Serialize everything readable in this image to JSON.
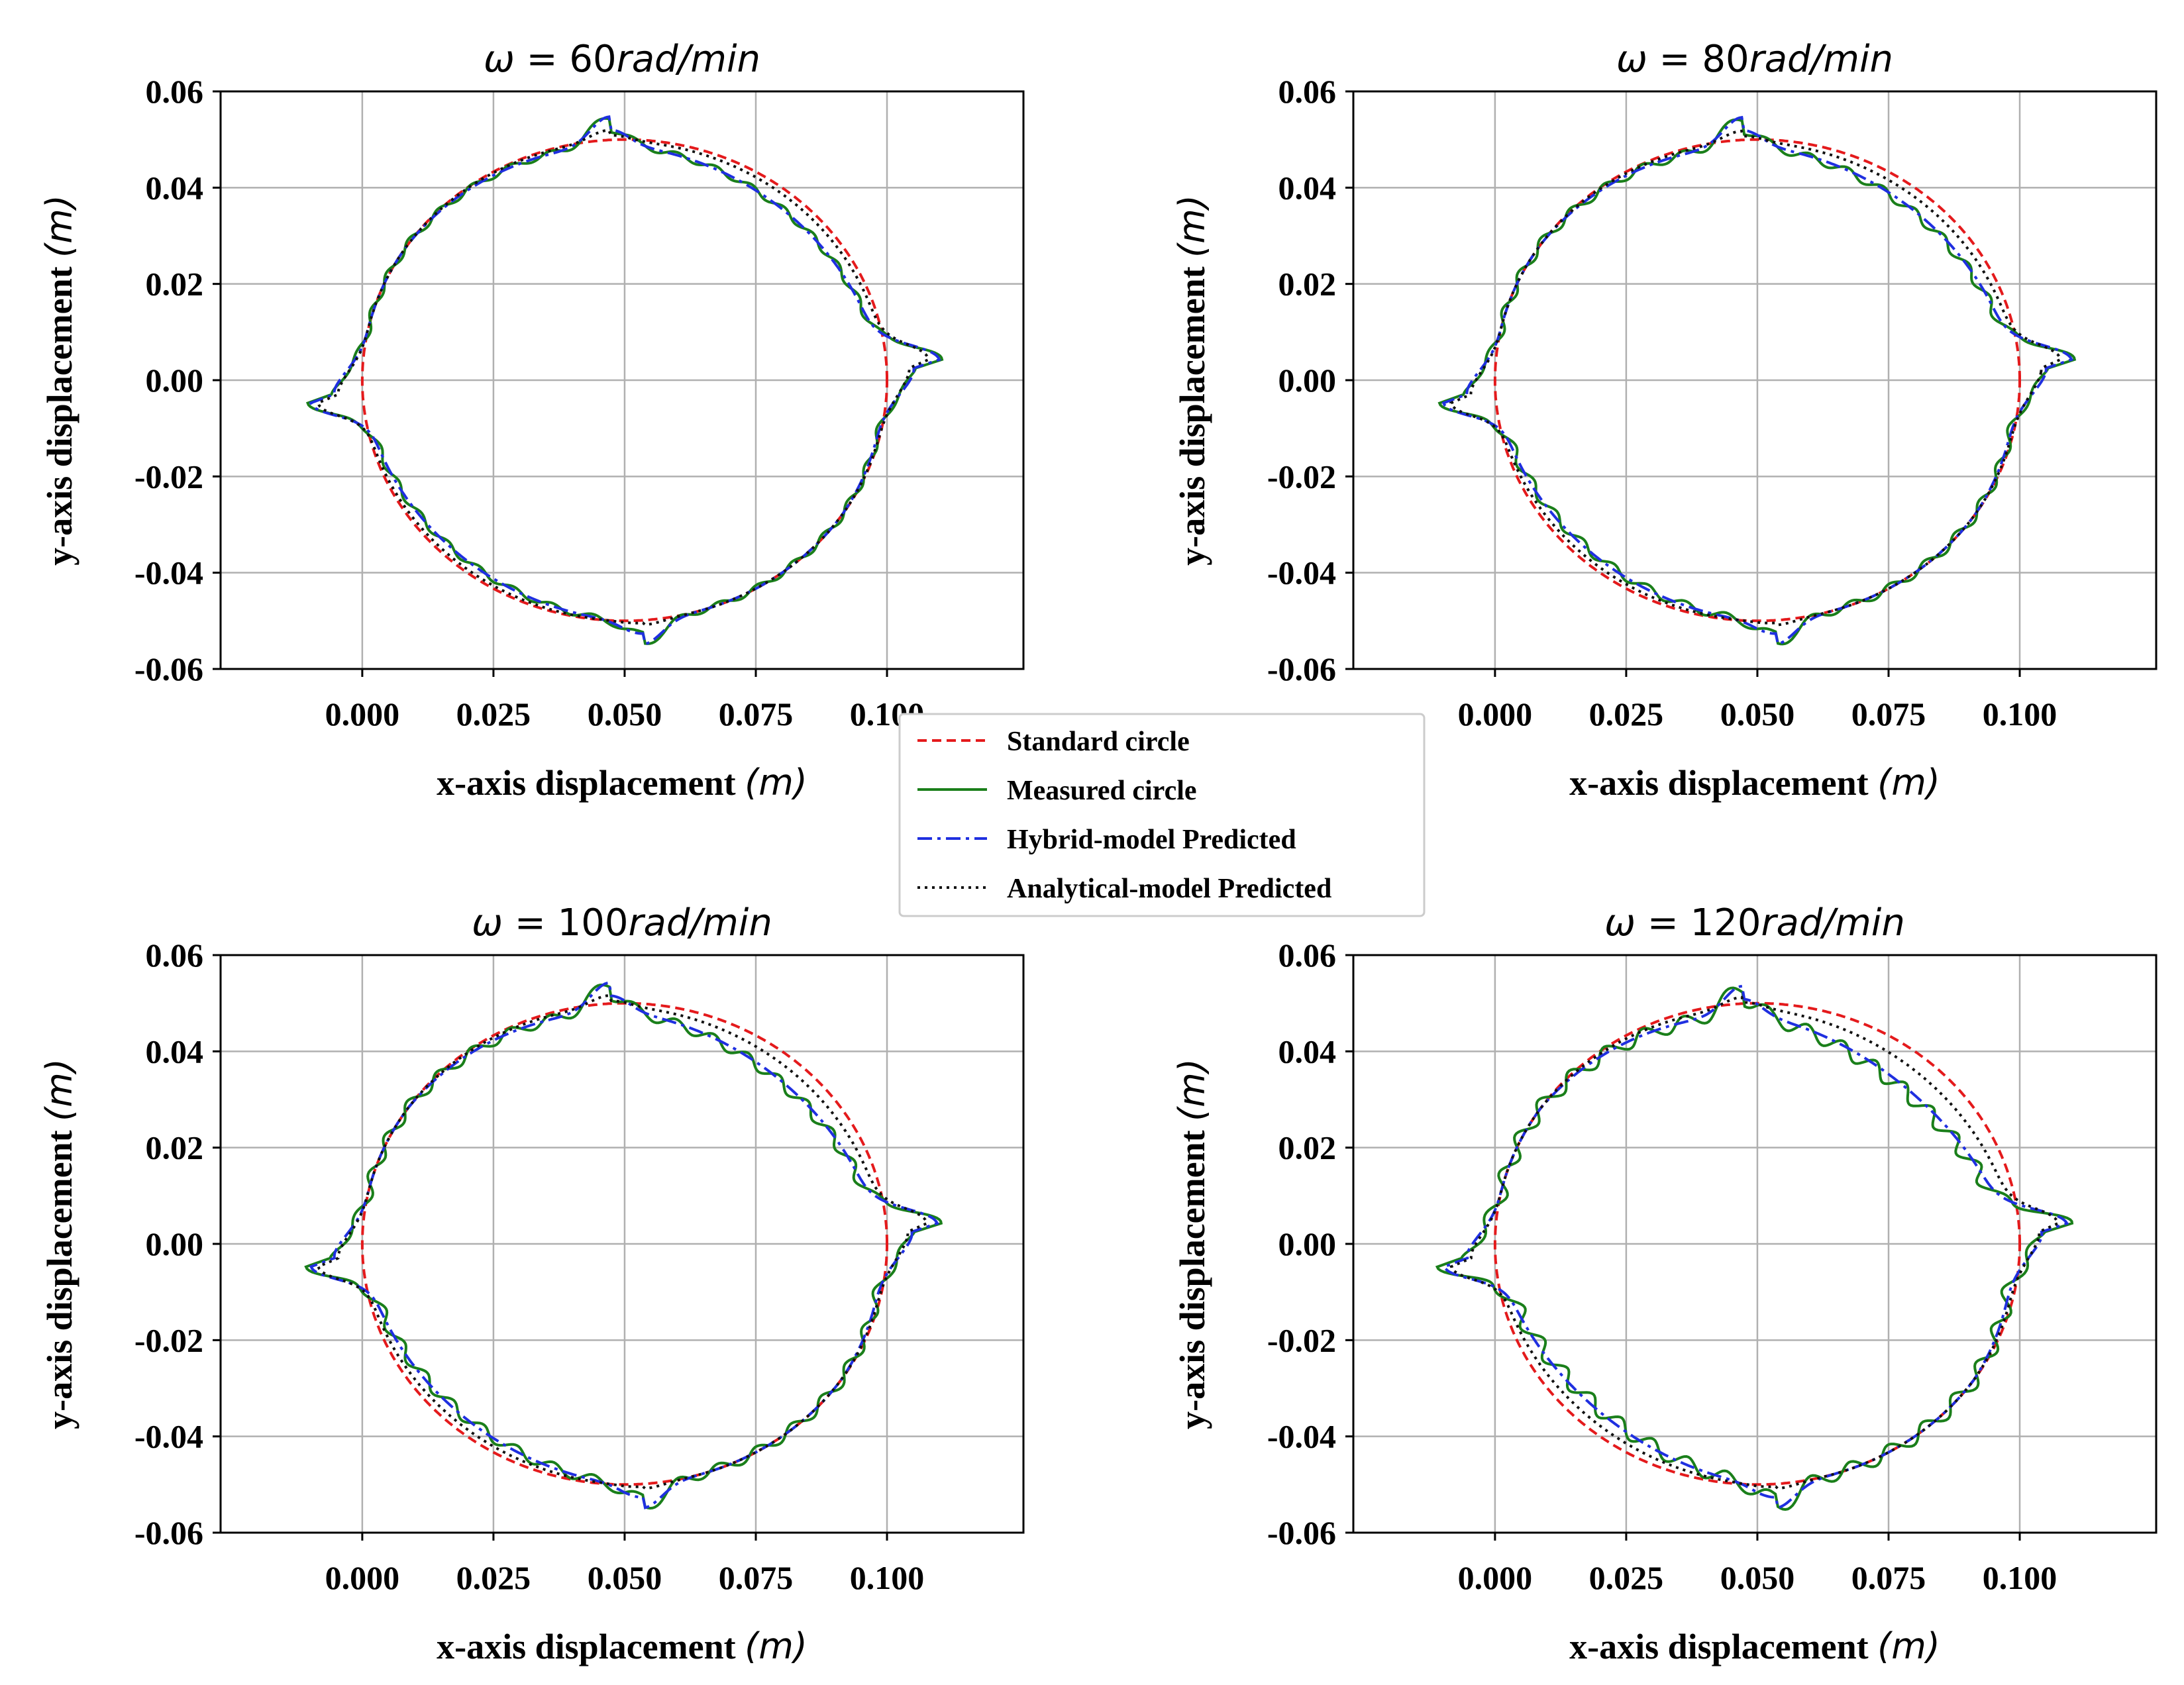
{
  "figure": {
    "legend": {
      "location": "center",
      "entries": [
        {
          "key": "standard",
          "label": "Standard circle",
          "color": "#e41a1c",
          "style": "dashed"
        },
        {
          "key": "measured",
          "label": "Measured circle",
          "color": "#1a7f1a",
          "style": "solid"
        },
        {
          "key": "hybrid",
          "label": "Hybrid-model Predicted",
          "color": "#1f2fe0",
          "style": "dashdot"
        },
        {
          "key": "analytical",
          "label": "Analytical-model Predicted",
          "color": "#111111",
          "style": "dotted"
        }
      ]
    }
  },
  "chart_data": [
    {
      "type": "line",
      "title": "ω = 60rad/min",
      "title_parts": {
        "symbol": "ω",
        "eq": " = ",
        "value": "60",
        "unit": "rad/min"
      },
      "xlabel": {
        "text": "x-axis displacement ",
        "unit": "(m)"
      },
      "ylabel": {
        "text": "y-axis displacement ",
        "unit": "(m)"
      },
      "xlim": [
        -0.027,
        0.126
      ],
      "ylim": [
        -0.06,
        0.06
      ],
      "xticks": [
        0.0,
        0.025,
        0.05,
        0.075,
        0.1
      ],
      "xtick_labels": [
        "0.000",
        "0.025",
        "0.050",
        "0.075",
        "0.100"
      ],
      "yticks": [
        -0.06,
        -0.04,
        -0.02,
        0.0,
        0.02,
        0.04,
        0.06
      ],
      "ytick_labels": [
        "-0.06",
        "-0.04",
        "-0.02",
        "0.00",
        "0.02",
        "0.04",
        "0.06"
      ],
      "grid": true,
      "center": [
        0.05,
        0.0
      ],
      "radius": 0.05,
      "series_params": {
        "measured": {
          "k": 1.0,
          "wave": 0.0006
        },
        "hybrid": {
          "k": 1.0,
          "wave": 0.0
        },
        "analytical": {
          "k": 0.3,
          "wave": 0.0
        }
      }
    },
    {
      "type": "line",
      "title": "ω = 80rad/min",
      "title_parts": {
        "symbol": "ω",
        "eq": " = ",
        "value": "80",
        "unit": "rad/min"
      },
      "xlabel": {
        "text": "x-axis displacement ",
        "unit": "(m)"
      },
      "ylabel": {
        "text": "y-axis displacement ",
        "unit": "(m)"
      },
      "xlim": [
        -0.027,
        0.126
      ],
      "ylim": [
        -0.06,
        0.06
      ],
      "xticks": [
        0.0,
        0.025,
        0.05,
        0.075,
        0.1
      ],
      "xtick_labels": [
        "0.000",
        "0.025",
        "0.050",
        "0.075",
        "0.100"
      ],
      "yticks": [
        -0.06,
        -0.04,
        -0.02,
        0.0,
        0.02,
        0.04,
        0.06
      ],
      "ytick_labels": [
        "-0.06",
        "-0.04",
        "-0.02",
        "0.00",
        "0.02",
        "0.04",
        "0.06"
      ],
      "grid": true,
      "center": [
        0.05,
        0.0
      ],
      "radius": 0.05,
      "series_params": {
        "measured": {
          "k": 1.2,
          "wave": 0.0008
        },
        "hybrid": {
          "k": 1.1,
          "wave": 0.0
        },
        "analytical": {
          "k": 0.45,
          "wave": 0.0
        }
      }
    },
    {
      "type": "line",
      "title": "ω = 100rad/min",
      "title_parts": {
        "symbol": "ω",
        "eq": " = ",
        "value": "100",
        "unit": "rad/min"
      },
      "xlabel": {
        "text": "x-axis displacement ",
        "unit": "(m)"
      },
      "ylabel": {
        "text": "y-axis displacement ",
        "unit": "(m)"
      },
      "xlim": [
        -0.027,
        0.126
      ],
      "ylim": [
        -0.06,
        0.06
      ],
      "xticks": [
        0.0,
        0.025,
        0.05,
        0.075,
        0.1
      ],
      "xtick_labels": [
        "0.000",
        "0.025",
        "0.050",
        "0.075",
        "0.100"
      ],
      "yticks": [
        -0.06,
        -0.04,
        -0.02,
        0.0,
        0.02,
        0.04,
        0.06
      ],
      "ytick_labels": [
        "-0.06",
        "-0.04",
        "-0.02",
        "0.00",
        "0.02",
        "0.04",
        "0.06"
      ],
      "grid": true,
      "center": [
        0.05,
        0.0
      ],
      "radius": 0.05,
      "series_params": {
        "measured": {
          "k": 1.5,
          "wave": 0.001
        },
        "hybrid": {
          "k": 1.4,
          "wave": 0.0
        },
        "analytical": {
          "k": 0.6,
          "wave": 0.0
        }
      }
    },
    {
      "type": "line",
      "title": "ω = 120rad/min",
      "title_parts": {
        "symbol": "ω",
        "eq": " = ",
        "value": "120",
        "unit": "rad/min"
      },
      "xlabel": {
        "text": "x-axis displacement ",
        "unit": "(m)"
      },
      "ylabel": {
        "text": "y-axis displacement ",
        "unit": "(m)"
      },
      "xlim": [
        -0.027,
        0.126
      ],
      "ylim": [
        -0.06,
        0.06
      ],
      "xticks": [
        0.0,
        0.025,
        0.05,
        0.075,
        0.1
      ],
      "xtick_labels": [
        "0.000",
        "0.025",
        "0.050",
        "0.075",
        "0.100"
      ],
      "yticks": [
        -0.06,
        -0.04,
        -0.02,
        0.0,
        0.02,
        0.04,
        0.06
      ],
      "ytick_labels": [
        "-0.06",
        "-0.04",
        "-0.02",
        "0.00",
        "0.02",
        "0.04",
        "0.06"
      ],
      "grid": true,
      "center": [
        0.05,
        0.0
      ],
      "radius": 0.05,
      "series_params": {
        "measured": {
          "k": 2.2,
          "wave": 0.0014
        },
        "hybrid": {
          "k": 2.0,
          "wave": 0.0
        },
        "analytical": {
          "k": 0.9,
          "wave": 0.0
        }
      }
    }
  ]
}
